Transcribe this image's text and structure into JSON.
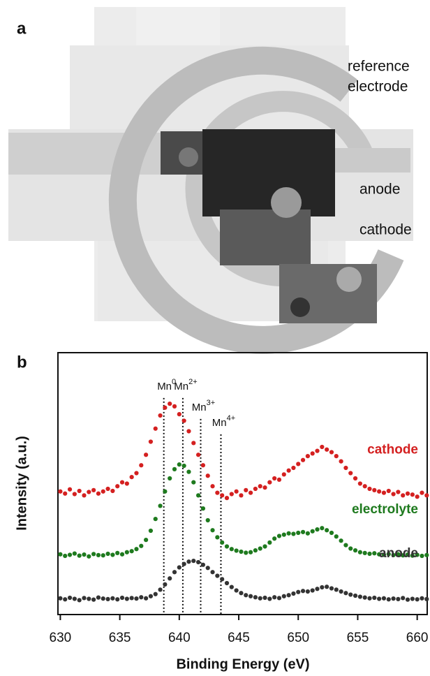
{
  "panel_a": {
    "label": "a",
    "reference_electrode": [
      "reference",
      "electrode"
    ],
    "anode": "anode",
    "cathode": "cathode"
  },
  "chart_data": {
    "type": "scatter",
    "panel_label": "b",
    "xlabel": "Binding Energy (eV)",
    "ylabel": "Intensity (a.u.)",
    "xlim": [
      629.8,
      660.9
    ],
    "xticks": [
      630,
      635,
      640,
      645,
      650,
      655,
      660
    ],
    "ylim": [
      0,
      10
    ],
    "x": [
      630.0,
      630.4,
      630.8,
      631.2,
      631.6,
      632.0,
      632.4,
      632.8,
      633.2,
      633.6,
      634.0,
      634.4,
      634.8,
      635.2,
      635.6,
      636.0,
      636.4,
      636.8,
      637.2,
      637.6,
      638.0,
      638.4,
      638.8,
      639.2,
      639.6,
      640.0,
      640.4,
      640.8,
      641.2,
      641.6,
      642.0,
      642.4,
      642.8,
      643.2,
      643.6,
      644.0,
      644.4,
      644.8,
      645.2,
      645.6,
      646.0,
      646.4,
      646.8,
      647.2,
      647.6,
      648.0,
      648.4,
      648.8,
      649.2,
      649.6,
      650.0,
      650.4,
      650.8,
      651.2,
      651.6,
      652.0,
      652.4,
      652.8,
      653.2,
      653.6,
      654.0,
      654.4,
      654.8,
      655.2,
      655.6,
      656.0,
      656.4,
      656.8,
      657.2,
      657.6,
      658.0,
      658.4,
      658.8,
      659.2,
      659.6,
      660.0,
      660.4,
      660.8
    ],
    "series": [
      {
        "name": "cathode",
        "color": "#d42020",
        "values": [
          4.7,
          4.62,
          4.78,
          4.6,
          4.72,
          4.55,
          4.68,
          4.75,
          4.62,
          4.7,
          4.8,
          4.72,
          4.9,
          5.05,
          5.0,
          5.25,
          5.4,
          5.7,
          6.1,
          6.6,
          7.1,
          7.6,
          7.9,
          8.05,
          7.95,
          7.65,
          7.4,
          7.0,
          6.55,
          6.1,
          5.7,
          5.3,
          4.9,
          4.65,
          4.55,
          4.45,
          4.6,
          4.7,
          4.55,
          4.75,
          4.65,
          4.8,
          4.9,
          4.85,
          5.05,
          5.2,
          5.15,
          5.35,
          5.5,
          5.6,
          5.75,
          5.9,
          6.05,
          6.15,
          6.25,
          6.4,
          6.3,
          6.2,
          6.05,
          5.85,
          5.6,
          5.4,
          5.2,
          5.0,
          4.9,
          4.8,
          4.75,
          4.7,
          4.65,
          4.72,
          4.6,
          4.68,
          4.55,
          4.62,
          4.58,
          4.5,
          4.65,
          4.55
        ]
      },
      {
        "name": "electrolyte",
        "color": "#1e7a1e",
        "values": [
          2.3,
          2.24,
          2.28,
          2.33,
          2.25,
          2.29,
          2.22,
          2.31,
          2.27,
          2.26,
          2.32,
          2.28,
          2.35,
          2.3,
          2.38,
          2.42,
          2.5,
          2.62,
          2.85,
          3.2,
          3.65,
          4.15,
          4.7,
          5.2,
          5.55,
          5.73,
          5.68,
          5.45,
          5.05,
          4.55,
          4.05,
          3.6,
          3.22,
          2.95,
          2.75,
          2.6,
          2.5,
          2.44,
          2.4,
          2.36,
          2.38,
          2.45,
          2.52,
          2.6,
          2.75,
          2.9,
          3.0,
          3.05,
          3.1,
          3.08,
          3.12,
          3.15,
          3.1,
          3.18,
          3.25,
          3.3,
          3.22,
          3.12,
          2.98,
          2.82,
          2.65,
          2.52,
          2.45,
          2.38,
          2.35,
          2.32,
          2.34,
          2.3,
          2.28,
          2.31,
          2.27,
          2.3,
          2.26,
          2.29,
          2.25,
          2.28,
          2.24,
          2.27
        ]
      },
      {
        "name": "anode",
        "color": "#333333",
        "values": [
          0.62,
          0.58,
          0.64,
          0.6,
          0.55,
          0.63,
          0.6,
          0.57,
          0.65,
          0.61,
          0.59,
          0.62,
          0.58,
          0.64,
          0.6,
          0.63,
          0.61,
          0.66,
          0.62,
          0.7,
          0.78,
          0.95,
          1.15,
          1.38,
          1.62,
          1.8,
          1.93,
          2.02,
          2.05,
          2.0,
          1.9,
          1.78,
          1.62,
          1.48,
          1.35,
          1.2,
          1.05,
          0.92,
          0.82,
          0.74,
          0.7,
          0.66,
          0.62,
          0.64,
          0.6,
          0.66,
          0.63,
          0.7,
          0.74,
          0.8,
          0.86,
          0.9,
          0.88,
          0.92,
          0.98,
          1.04,
          1.06,
          1.0,
          0.95,
          0.88,
          0.82,
          0.76,
          0.72,
          0.68,
          0.65,
          0.62,
          0.64,
          0.6,
          0.62,
          0.58,
          0.61,
          0.59,
          0.63,
          0.57,
          0.6,
          0.58,
          0.62,
          0.59
        ]
      }
    ],
    "reference_lines": [
      {
        "label": "Mn",
        "charge": "0",
        "x": 638.7,
        "top": 8.27
      },
      {
        "label": "Mn",
        "charge": "2+",
        "x": 640.3,
        "top": 8.27
      },
      {
        "label": "Mn",
        "charge": "3+",
        "x": 641.8,
        "top": 7.47
      },
      {
        "label": "Mn",
        "charge": "4+",
        "x": 643.5,
        "top": 6.88
      }
    ]
  }
}
